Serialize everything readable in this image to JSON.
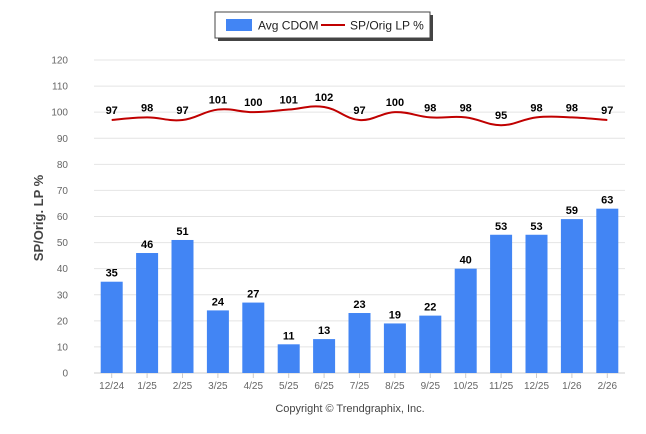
{
  "chart_data": {
    "type": "bar",
    "categories": [
      "12/24",
      "1/25",
      "2/25",
      "3/25",
      "4/25",
      "5/25",
      "6/25",
      "7/25",
      "8/25",
      "9/25",
      "10/25",
      "11/25",
      "12/25",
      "1/26",
      "2/26"
    ],
    "series": [
      {
        "name": "Avg CDOM",
        "type": "bar",
        "color": "#4285f4",
        "values": [
          35,
          46,
          51,
          24,
          27,
          11,
          13,
          23,
          19,
          22,
          40,
          53,
          53,
          59,
          63
        ]
      },
      {
        "name": "SP/Orig LP %",
        "type": "line",
        "color": "#c00000",
        "values": [
          97,
          98,
          97,
          101,
          100,
          101,
          102,
          97,
          100,
          98,
          98,
          95,
          98,
          98,
          97
        ]
      }
    ],
    "ylabel": "SP/Orig. LP %",
    "ylim": [
      0,
      120
    ],
    "yticks": [
      0,
      10,
      20,
      30,
      40,
      50,
      60,
      70,
      80,
      90,
      100,
      110,
      120
    ],
    "grid": true,
    "legend_position": "top-center"
  },
  "footer": {
    "copyright": "Copyright © Trendgraphix, Inc."
  }
}
